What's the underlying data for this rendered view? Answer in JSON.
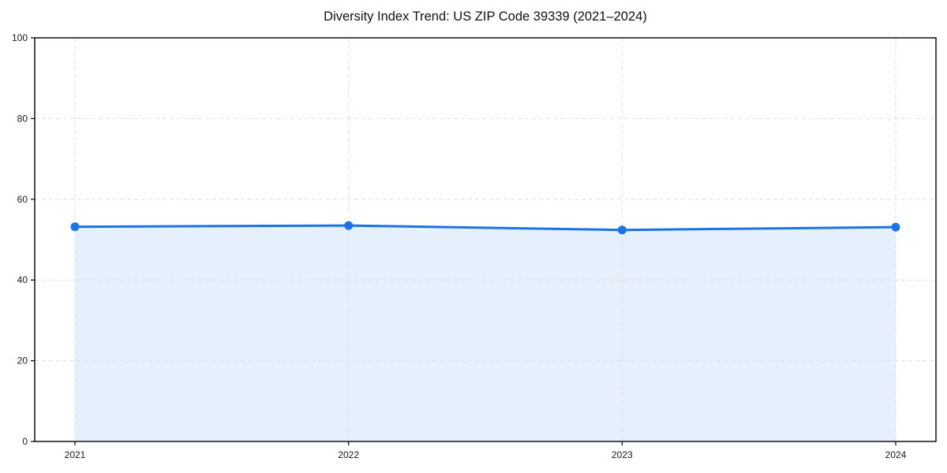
{
  "page": {
    "background": "#ffffff"
  },
  "chart_data": {
    "type": "line",
    "title": "Diversity Index Trend: US ZIP Code 39339 (2021–2024)",
    "categories": [
      "2021",
      "2022",
      "2023",
      "2024"
    ],
    "series": [
      {
        "name": "Diversity Index",
        "values": [
          53.2,
          53.5,
          52.4,
          53.1
        ]
      }
    ],
    "xlabel": "",
    "ylabel": "",
    "ylim": [
      0,
      100
    ],
    "yticks": [
      0,
      20,
      40,
      60,
      80,
      100
    ],
    "grid": true,
    "grid_style": "dashed",
    "legend_position": "none",
    "area_fill": true,
    "colors": {
      "line": "#1a73e8",
      "marker": "#1a73e8",
      "area": "rgba(26,115,232,0.11)",
      "grid": "#dedede",
      "axis": "#000000",
      "tick_label": "#1a1a1a",
      "title": "#111111",
      "background": "#ffffff"
    }
  }
}
